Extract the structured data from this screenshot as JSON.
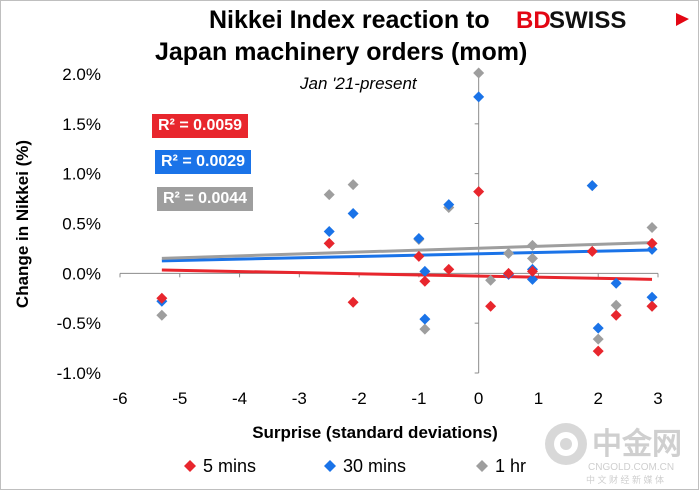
{
  "header": {
    "title_line1": "Nikkei Index reaction to",
    "title_line2": "Japan machinery orders (mom)",
    "subtitle": "Jan '21-present",
    "logo_text_bd": "BD",
    "logo_text_swiss": "SWISS"
  },
  "watermark": {
    "text": "中金网",
    "domain": "CNGOLD.COM.CN",
    "tagline": "中 文 财 经 新 媒 体"
  },
  "colors": {
    "red": "#e8262d",
    "blue": "#1a73e8",
    "gray": "#9e9e9e",
    "brand_red": "#e30613"
  },
  "chart_data": {
    "type": "scatter",
    "title": "Nikkei Index reaction to Japan machinery orders (mom)",
    "subtitle": "Jan '21-present",
    "xlabel": "Surprise (standard deviations)",
    "ylabel": "Change in Nikkei (%)",
    "xlim": [
      -6,
      3
    ],
    "ylim": [
      -1.0,
      2.0
    ],
    "x_ticks": [
      "-6",
      "-5",
      "-4",
      "-3",
      "-2",
      "-1",
      "0",
      "1",
      "2",
      "3"
    ],
    "y_ticks": [
      "2.0%",
      "1.5%",
      "1.0%",
      "0.5%",
      "0.0%",
      "-0.5%",
      "-1.0%"
    ],
    "grid": false,
    "legend": "bottom",
    "series": [
      {
        "name": "5 mins",
        "color": "#e8262d",
        "r2_label": "R² = 0.0059",
        "trend": {
          "slope": -0.0114,
          "intercept": -0.0274
        },
        "points": [
          [
            -5.3,
            -0.25
          ],
          [
            -2.5,
            0.3
          ],
          [
            -2.1,
            -0.29
          ],
          [
            -1.0,
            0.17
          ],
          [
            -0.9,
            -0.08
          ],
          [
            -0.5,
            0.04
          ],
          [
            0.0,
            0.82
          ],
          [
            0.2,
            -0.33
          ],
          [
            0.5,
            0.0
          ],
          [
            0.9,
            0.02
          ],
          [
            1.9,
            0.22
          ],
          [
            2.0,
            -0.78
          ],
          [
            2.3,
            -0.42
          ],
          [
            2.9,
            0.3
          ],
          [
            2.9,
            -0.33
          ]
        ]
      },
      {
        "name": "30 mins",
        "color": "#1a73e8",
        "r2_label": "R² = 0.0029",
        "trend": {
          "slope": 0.0133,
          "intercept": 0.1957
        },
        "points": [
          [
            -5.3,
            -0.28
          ],
          [
            -2.5,
            0.42
          ],
          [
            -2.1,
            0.6
          ],
          [
            -1.0,
            0.35
          ],
          [
            -0.9,
            0.02
          ],
          [
            -0.9,
            -0.46
          ],
          [
            -0.5,
            0.69
          ],
          [
            0.0,
            1.77
          ],
          [
            0.5,
            -0.01
          ],
          [
            0.9,
            0.04
          ],
          [
            0.9,
            -0.06
          ],
          [
            1.9,
            0.88
          ],
          [
            2.0,
            -0.55
          ],
          [
            2.3,
            -0.1
          ],
          [
            2.9,
            0.24
          ],
          [
            2.9,
            -0.24
          ]
        ]
      },
      {
        "name": "1 hr",
        "color": "#9e9e9e",
        "r2_label": "R² = 0.0044",
        "trend": {
          "slope": 0.0193,
          "intercept": 0.2524
        },
        "points": [
          [
            -5.3,
            -0.42
          ],
          [
            -2.5,
            0.79
          ],
          [
            -2.1,
            0.89
          ],
          [
            -2.5,
            0.3
          ],
          [
            -1.0,
            0.34
          ],
          [
            -0.9,
            -0.56
          ],
          [
            -0.5,
            0.66
          ],
          [
            0.0,
            2.01
          ],
          [
            0.2,
            -0.07
          ],
          [
            0.5,
            0.2
          ],
          [
            0.9,
            0.28
          ],
          [
            0.9,
            0.15
          ],
          [
            1.9,
            0.88
          ],
          [
            2.0,
            -0.66
          ],
          [
            2.3,
            -0.32
          ],
          [
            2.9,
            0.46
          ],
          [
            2.9,
            -0.33
          ]
        ]
      }
    ]
  }
}
